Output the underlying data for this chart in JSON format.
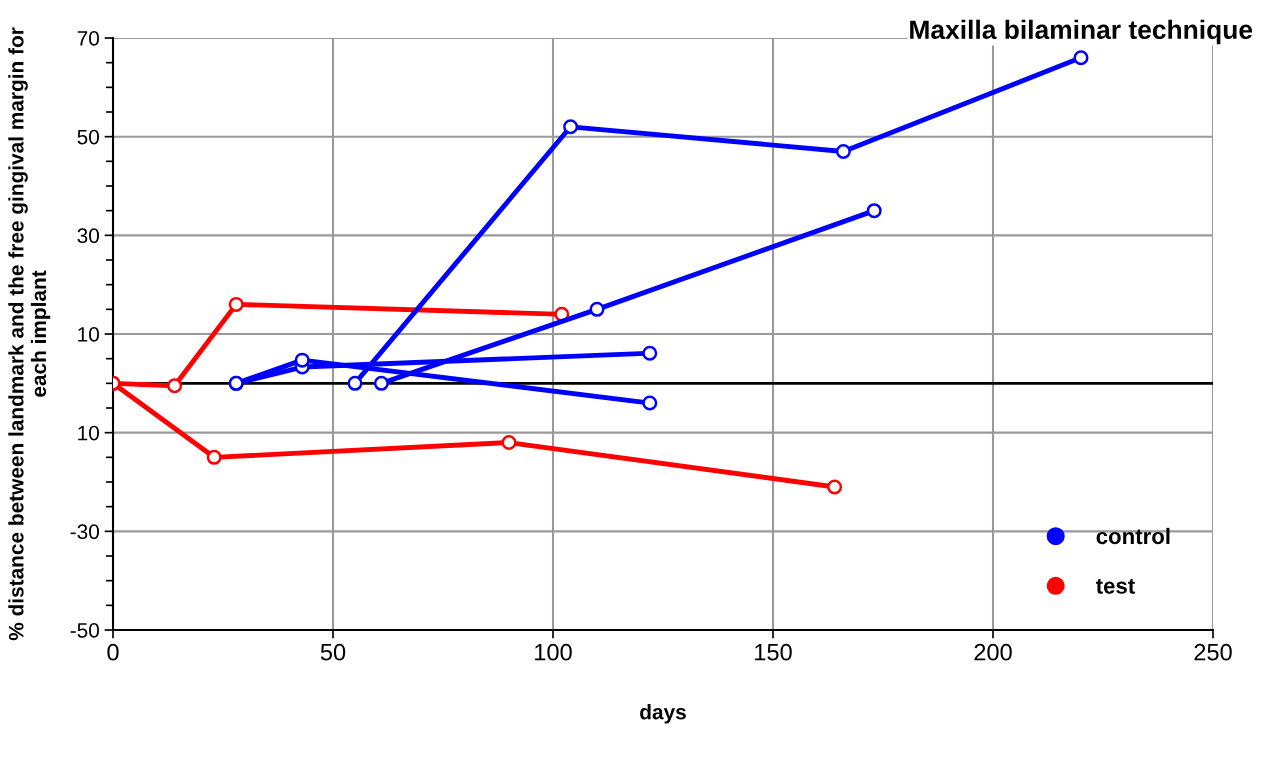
{
  "chart_data": {
    "type": "line",
    "title": "Maxilla bilaminar technique",
    "xlabel": "days",
    "ylabel": "% distance between landmark and the free gingival margin for each implant",
    "series": [
      {
        "name": "control",
        "color": "#0000ff",
        "x": [
          28,
          43,
          122
        ],
        "values": [
          0,
          4.7,
          -4
        ]
      },
      {
        "color": "#0000ff",
        "x": [
          28,
          43,
          122
        ],
        "values": [
          0,
          3.3,
          6.1
        ]
      },
      {
        "color": "#0000ff",
        "x": [
          55,
          104,
          166,
          220
        ],
        "values": [
          0,
          52,
          47,
          66
        ]
      },
      {
        "color": "#0000ff",
        "x": [
          61,
          110,
          173
        ],
        "values": [
          0,
          15,
          35
        ]
      },
      {
        "name": "test",
        "color": "#ff0000",
        "x": [
          0,
          14,
          28,
          102
        ],
        "values": [
          0,
          -0.5,
          16,
          14
        ]
      },
      {
        "color": "#ff0000",
        "x": [
          0,
          23,
          90,
          164
        ],
        "values": [
          0,
          -15,
          -12,
          -21
        ]
      }
    ],
    "xlim": [
      0,
      250
    ],
    "xticks": [
      0,
      50,
      100,
      150,
      200,
      250
    ],
    "ylim": [
      -50,
      70
    ],
    "yticks": [
      -50,
      -30,
      {
        "value": -10,
        "label": "10"
      },
      10,
      30,
      50,
      70
    ],
    "ref_lines": [
      {
        "axis": "y",
        "value": 0,
        "color": "#000000"
      }
    ],
    "grid": true,
    "legend": "bottom right",
    "marker": "circle",
    "line_style": "solid"
  }
}
